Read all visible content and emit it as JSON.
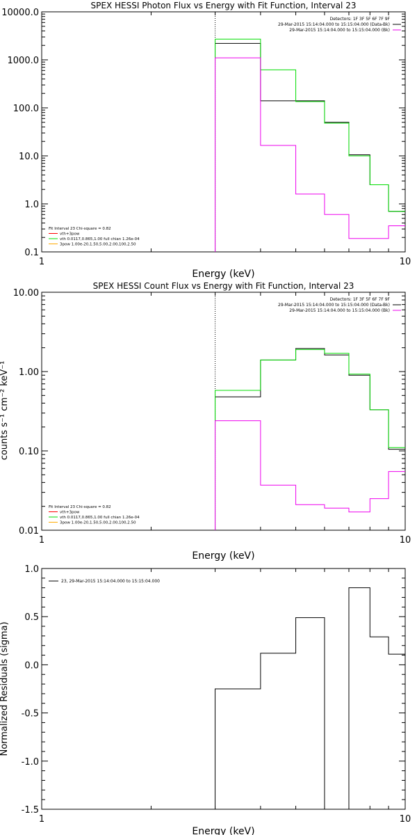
{
  "chart_data": [
    {
      "type": "line",
      "title": "SPEX HESSI Photon Flux vs Energy with Fit Function, Interval 23",
      "xlabel": "Energy (keV)",
      "ylabel": "",
      "xscale": "log",
      "yscale": "log",
      "xlim": [
        1,
        10
      ],
      "ylim": [
        0.1,
        10000
      ],
      "x_ticks": [
        "1",
        "10"
      ],
      "y_ticks": [
        "10000.0",
        "1000.0",
        "100.0",
        "10.0",
        "1.0",
        "0.1"
      ],
      "dotted_line_x": 3,
      "bin_edges": [
        3,
        4,
        5,
        6,
        7,
        8,
        9,
        10
      ],
      "legend_top": [
        "Detectors: 1F 3F 5F 6F 7F 9F",
        "29-Mar-2015 15:14:04.000 to 15:15:04.000 (Data-Bk)",
        "29-Mar-2015 15:14:04.000 to 15:15:04.000 (Bk)"
      ],
      "legend_bottom": [
        "Fit Interval 23   Chi-square = 0.82",
        "vth+3pow",
        "vth 0.0117,0.865,1.00  full chian 1.26e-04",
        "3pow 1.00e-20,1.50,5.00,2.00,100,2.50"
      ],
      "series": [
        {
          "name": "29-Mar-2015 15:14:04.000 to 15:15:04.000 (Data-Bk)",
          "color": "#000000",
          "values": [
            2200,
            140,
            140,
            50,
            10.5,
            2.5,
            0.7
          ]
        },
        {
          "name": "vth+3pow",
          "color": "#00dd00",
          "values": [
            2700,
            620,
            135,
            48,
            10,
            2.5,
            0.7
          ]
        },
        {
          "name": "29-Mar-2015 15:14:04.000 to 15:15:04.000 (Bk)",
          "color": "#ee00ee",
          "values": [
            1100,
            16.5,
            1.6,
            0.6,
            0.19,
            0.19,
            0.35
          ]
        }
      ]
    },
    {
      "type": "line",
      "title": "SPEX HESSI Count Flux vs Energy with Fit Function, Interval 23",
      "xlabel": "Energy (keV)",
      "ylabel": "counts s⁻¹ cm⁻² keV⁻¹",
      "xscale": "log",
      "yscale": "log",
      "xlim": [
        1,
        10
      ],
      "ylim": [
        0.01,
        10
      ],
      "x_ticks": [
        "1",
        "10"
      ],
      "y_ticks": [
        "10.00",
        "1.00",
        "0.10",
        "0.01"
      ],
      "dotted_line_x": 3,
      "bin_edges": [
        3,
        4,
        5,
        6,
        7,
        8,
        9,
        10
      ],
      "legend_top": [
        "Detectors: 1F 3F 5F 6F 7F 9F",
        "29-Mar-2015 15:14:04.000 to 15:15:04.000 (Data-Bk)",
        "29-Mar-2015 15:14:04.000 to 15:15:04.000 (Bk)"
      ],
      "legend_bottom": [
        "Fit Interval 23   Chi-square = 0.82",
        "vth+3pow",
        "vth 0.0117,0.865,1.00  full chian 1.26e-04",
        "3pow 1.00e-20,1.50,5.00,2.00,100,2.50"
      ],
      "series": [
        {
          "name": "29-Mar-2015 15:14:04.000 to 15:15:04.000 (Data-Bk)",
          "color": "#000000",
          "values": [
            0.48,
            1.4,
            1.95,
            1.62,
            0.9,
            0.33,
            0.105
          ]
        },
        {
          "name": "vth+3pow",
          "color": "#00dd00",
          "values": [
            0.58,
            1.4,
            1.9,
            1.7,
            0.93,
            0.33,
            0.11
          ]
        },
        {
          "name": "29-Mar-2015 15:14:04.000 to 15:15:04.000 (Bk)",
          "color": "#ee00ee",
          "values": [
            0.24,
            0.037,
            0.021,
            0.019,
            0.017,
            0.025,
            0.055
          ]
        }
      ]
    },
    {
      "type": "line",
      "title": "",
      "xlabel": "Energy (keV)",
      "ylabel": "Normalized Residuals (sigma)",
      "xscale": "log",
      "yscale": "linear",
      "xlim": [
        1,
        10
      ],
      "ylim": [
        -1.5,
        1.0
      ],
      "x_ticks": [
        "1",
        "10"
      ],
      "y_ticks": [
        "1.0",
        "0.5",
        "0.0",
        "-0.5",
        "-1.0",
        "-1.5"
      ],
      "bin_edges": [
        3,
        4,
        5,
        6,
        7,
        8,
        9,
        10
      ],
      "legend": [
        "23, 29-Mar-2015 15:14:04.000 to 15:15:04.000"
      ],
      "series": [
        {
          "name": "23, 29-Mar-2015 15:14:04.000 to 15:15:04.000",
          "color": "#000000",
          "values": [
            -0.25,
            0.12,
            0.49,
            -1.5,
            0.8,
            0.29,
            0.11
          ]
        }
      ]
    }
  ]
}
